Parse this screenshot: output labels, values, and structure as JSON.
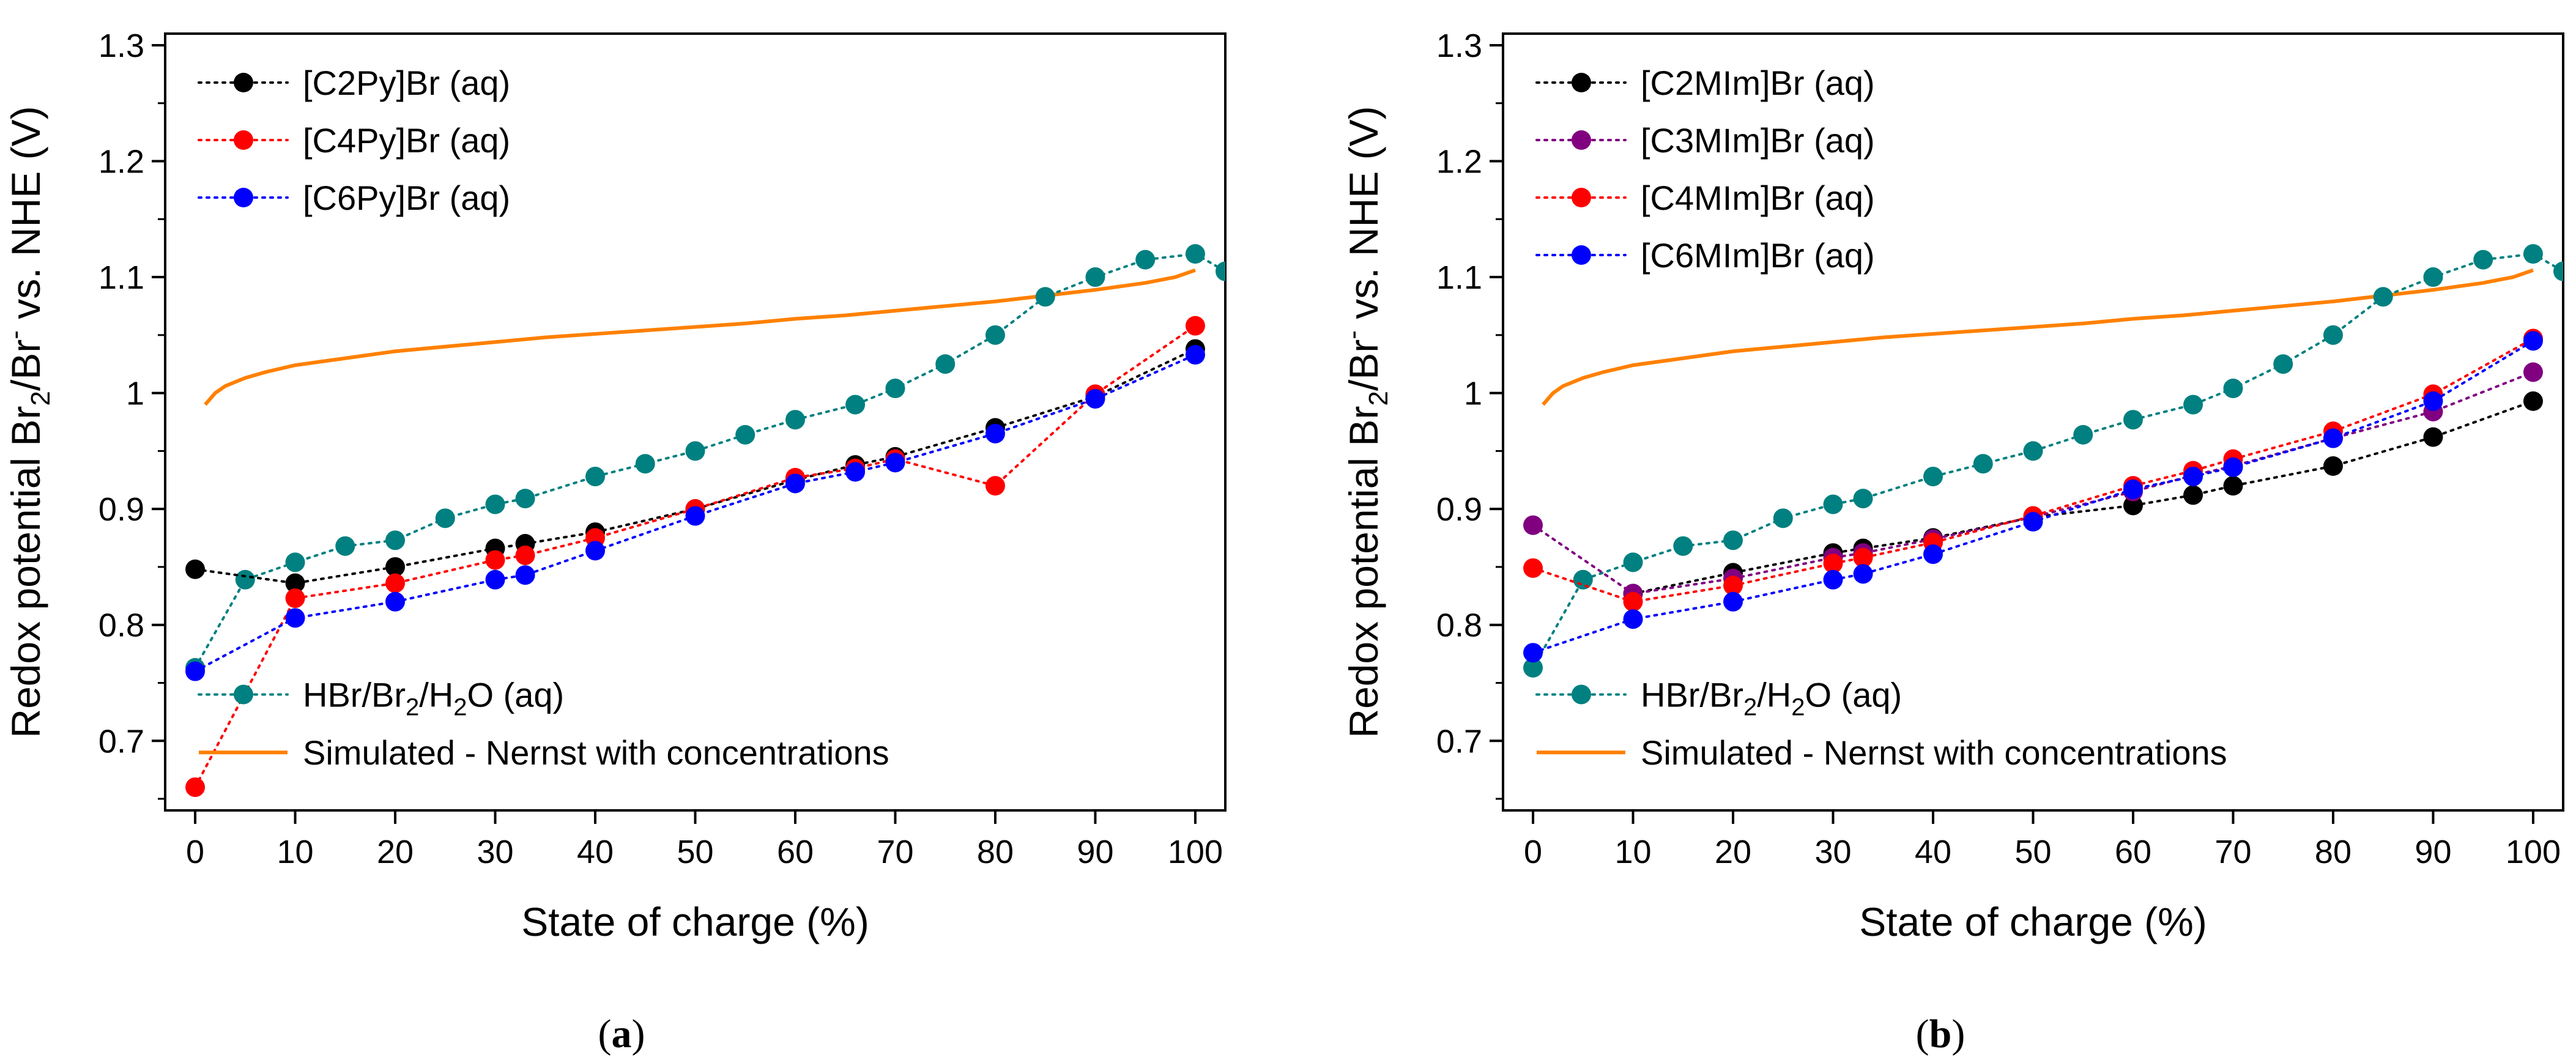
{
  "colors": {
    "black": "#000000",
    "red": "#ff0000",
    "blue": "#0000ff",
    "purple": "#800080",
    "teal": "#008080",
    "orange": "#ff8000"
  },
  "chart_data": [
    {
      "type": "line",
      "caption_letter": "a",
      "xlabel": "State of charge (%)",
      "ylabel": {
        "base": "Redox potential Br",
        "sub1": "2",
        "mid": "/Br",
        "sup": "-",
        "end": " vs. NHE (V)"
      },
      "xlim": [
        -3,
        103
      ],
      "ylim": [
        0.64,
        1.31
      ],
      "xticks": [
        0,
        10,
        20,
        30,
        40,
        50,
        60,
        70,
        80,
        90,
        100
      ],
      "yticks": [
        0.7,
        0.8,
        0.9,
        1.0,
        1.1,
        1.2,
        1.3
      ],
      "ytick_labels": [
        "0.7",
        "0.8",
        "0.9",
        "1",
        "1.1",
        "1.2",
        "1.3"
      ],
      "series": [
        {
          "name": "[C2Py]Br (aq)",
          "color": "#000000",
          "x": [
            0,
            10,
            20,
            30,
            33,
            40,
            50,
            60,
            66,
            70,
            80,
            90,
            100
          ],
          "y": [
            0.848,
            0.836,
            0.85,
            0.866,
            0.87,
            0.88,
            0.9,
            0.925,
            0.938,
            0.945,
            0.97,
            0.997,
            1.038
          ]
        },
        {
          "name": "[C4Py]Br (aq)",
          "color": "#ff0000",
          "x": [
            0,
            10,
            20,
            30,
            33,
            40,
            50,
            60,
            66,
            70,
            80,
            90,
            100
          ],
          "y": [
            0.66,
            0.823,
            0.836,
            0.856,
            0.86,
            0.875,
            0.9,
            0.927,
            0.935,
            0.943,
            0.92,
            0.999,
            1.058
          ]
        },
        {
          "name": "[C6Py]Br (aq)",
          "color": "#0000ff",
          "x": [
            0,
            10,
            20,
            30,
            33,
            40,
            50,
            60,
            66,
            70,
            80,
            90,
            100
          ],
          "y": [
            0.76,
            0.806,
            0.82,
            0.839,
            0.843,
            0.864,
            0.894,
            0.922,
            0.932,
            0.94,
            0.965,
            0.995,
            1.033
          ]
        }
      ],
      "reference": {
        "name": "HBr/Br2/H2O (aq)",
        "color": "#008080",
        "x": [
          0,
          5,
          10,
          15,
          20,
          25,
          30,
          33,
          40,
          45,
          50,
          55,
          60,
          66,
          70,
          75,
          80,
          85,
          90,
          95,
          100,
          103
        ],
        "y": [
          0.763,
          0.839,
          0.854,
          0.868,
          0.873,
          0.892,
          0.904,
          0.909,
          0.928,
          0.939,
          0.95,
          0.964,
          0.977,
          0.99,
          1.004,
          1.025,
          1.05,
          1.083,
          1.1,
          1.115,
          1.12,
          1.105
        ]
      },
      "simulated": {
        "name": "Simulated - Nernst with concentrations",
        "color": "#ff8000",
        "x": [
          1,
          2,
          3,
          5,
          7,
          10,
          15,
          20,
          25,
          30,
          35,
          40,
          45,
          50,
          55,
          60,
          65,
          70,
          75,
          80,
          85,
          90,
          95,
          98,
          100
        ],
        "y": [
          0.99,
          1.0,
          1.006,
          1.013,
          1.018,
          1.024,
          1.03,
          1.036,
          1.04,
          1.044,
          1.048,
          1.051,
          1.054,
          1.057,
          1.06,
          1.064,
          1.067,
          1.071,
          1.075,
          1.079,
          1.084,
          1.089,
          1.095,
          1.1,
          1.106
        ]
      },
      "legend_top": {
        "labels": [
          "[C2Py]Br (aq)",
          "[C4Py]Br (aq)",
          "[C6Py]Br (aq)"
        ]
      },
      "legend_bottom": {
        "hbr": {
          "base": "HBr/Br",
          "sub1": "2",
          "mid": "/H",
          "sub2": "2",
          "end": "O (aq)"
        },
        "sim": "Simulated - Nernst with concentrations"
      }
    },
    {
      "type": "line",
      "caption_letter": "b",
      "xlabel": "State of charge (%)",
      "ylabel": {
        "base": "Redox potential Br",
        "sub1": "2",
        "mid": "/Br",
        "sup": "-",
        "end": " vs. NHE (V)"
      },
      "xlim": [
        -3,
        103
      ],
      "ylim": [
        0.64,
        1.31
      ],
      "xticks": [
        0,
        10,
        20,
        30,
        40,
        50,
        60,
        70,
        80,
        90,
        100
      ],
      "yticks": [
        0.7,
        0.8,
        0.9,
        1.0,
        1.1,
        1.2,
        1.3
      ],
      "ytick_labels": [
        "0.7",
        "0.8",
        "0.9",
        "1",
        "1.1",
        "1.2",
        "1.3"
      ],
      "series": [
        {
          "name": "[C2MIm]Br (aq)",
          "color": "#000000",
          "x": [
            10,
            20,
            30,
            33,
            40,
            50,
            60,
            66,
            70,
            80,
            90,
            100
          ],
          "y": [
            0.827,
            0.845,
            0.862,
            0.866,
            0.875,
            0.893,
            0.903,
            0.912,
            0.92,
            0.937,
            0.962,
            0.993
          ]
        },
        {
          "name": "[C3MIm]Br (aq)",
          "color": "#800080",
          "x": [
            0,
            10,
            20,
            30,
            33,
            40,
            50,
            60,
            66,
            70,
            80,
            90,
            100
          ],
          "y": [
            0.886,
            0.827,
            0.84,
            0.858,
            0.862,
            0.874,
            0.893,
            0.915,
            0.929,
            0.937,
            0.961,
            0.984,
            1.018
          ]
        },
        {
          "name": "[C4MIm]Br (aq)",
          "color": "#ff0000",
          "x": [
            0,
            10,
            20,
            30,
            33,
            40,
            50,
            60,
            66,
            70,
            80,
            90,
            100
          ],
          "y": [
            0.849,
            0.82,
            0.834,
            0.853,
            0.858,
            0.871,
            0.894,
            0.92,
            0.933,
            0.943,
            0.967,
            0.999,
            1.047
          ]
        },
        {
          "name": "[C6MIm]Br (aq)",
          "color": "#0000ff",
          "x": [
            0,
            10,
            20,
            30,
            33,
            40,
            50,
            60,
            66,
            70,
            80,
            90,
            100
          ],
          "y": [
            0.776,
            0.805,
            0.82,
            0.839,
            0.844,
            0.861,
            0.889,
            0.917,
            0.928,
            0.936,
            0.961,
            0.993,
            1.045
          ]
        }
      ],
      "reference": {
        "name": "HBr/Br2/H2O (aq)",
        "color": "#008080",
        "x": [
          0,
          5,
          10,
          15,
          20,
          25,
          30,
          33,
          40,
          45,
          50,
          55,
          60,
          66,
          70,
          75,
          80,
          85,
          90,
          95,
          100,
          103
        ],
        "y": [
          0.763,
          0.839,
          0.854,
          0.868,
          0.873,
          0.892,
          0.904,
          0.909,
          0.928,
          0.939,
          0.95,
          0.964,
          0.977,
          0.99,
          1.004,
          1.025,
          1.05,
          1.083,
          1.1,
          1.115,
          1.12,
          1.105
        ]
      },
      "simulated": {
        "name": "Simulated - Nernst with concentrations",
        "color": "#ff8000",
        "x": [
          1,
          2,
          3,
          5,
          7,
          10,
          15,
          20,
          25,
          30,
          35,
          40,
          45,
          50,
          55,
          60,
          65,
          70,
          75,
          80,
          85,
          90,
          95,
          98,
          100
        ],
        "y": [
          0.99,
          1.0,
          1.006,
          1.013,
          1.018,
          1.024,
          1.03,
          1.036,
          1.04,
          1.044,
          1.048,
          1.051,
          1.054,
          1.057,
          1.06,
          1.064,
          1.067,
          1.071,
          1.075,
          1.079,
          1.084,
          1.089,
          1.095,
          1.1,
          1.106
        ]
      },
      "legend_top": {
        "labels": [
          "[C2MIm]Br (aq)",
          "[C3MIm]Br (aq)",
          "[C4MIm]Br (aq)",
          "[C6MIm]Br (aq)"
        ]
      },
      "legend_bottom": {
        "hbr": {
          "base": "HBr/Br",
          "sub1": "2",
          "mid": "/H",
          "sub2": "2",
          "end": "O (aq)"
        },
        "sim": "Simulated - Nernst with concentrations"
      }
    }
  ]
}
